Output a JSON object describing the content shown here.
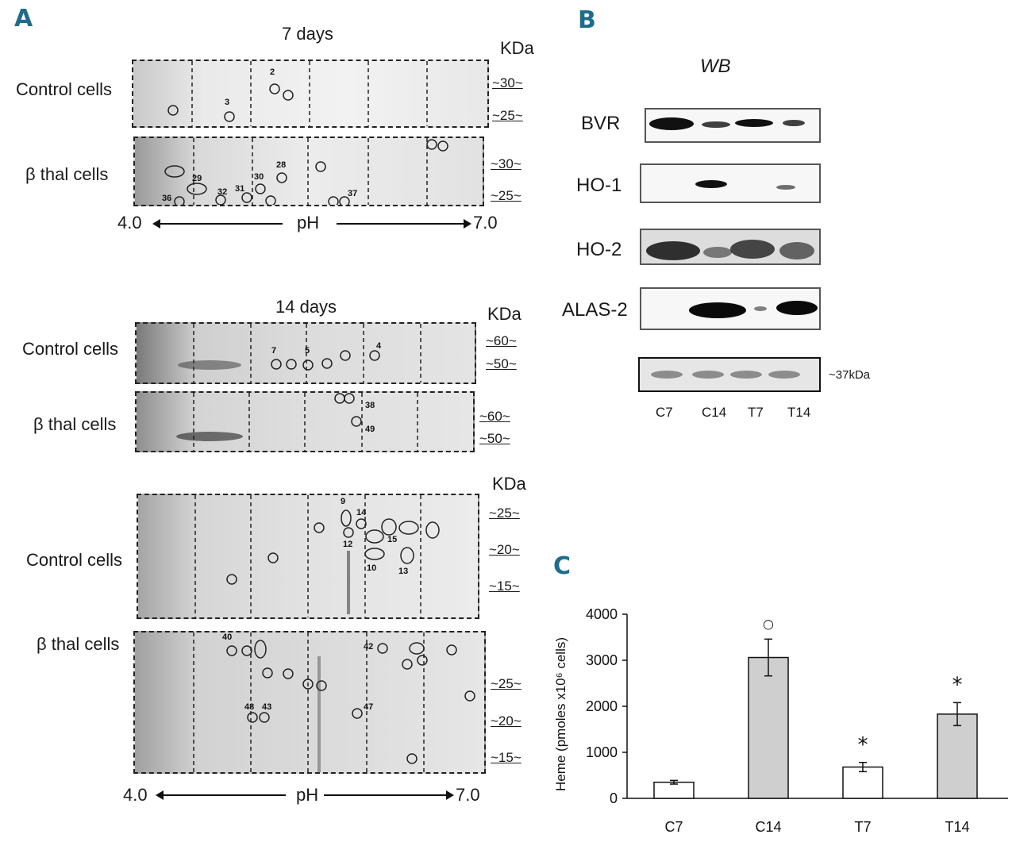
{
  "panelA": {
    "label": "A",
    "ph_start": "4.0",
    "ph_label": "pH",
    "ph_end": "7.0",
    "kda": "KDa",
    "control": "Control cells",
    "thal": "β thal cells",
    "day7": {
      "title": "7 days",
      "control_marks": [
        "~30~",
        "~25~"
      ],
      "thal_marks": [
        "~30~",
        "~25~"
      ],
      "control_spots": [
        "2",
        "3"
      ],
      "thal_spots": [
        "29",
        "30",
        "28",
        "31",
        "32",
        "36",
        "37"
      ]
    },
    "day14": {
      "title": "14 days",
      "control_marks": [
        "~60~",
        "~50~"
      ],
      "thal_marks": [
        "~60~",
        "~50~"
      ],
      "control_spots": [
        "7",
        "5",
        "4"
      ],
      "thal_spots": [
        "38",
        "49"
      ]
    },
    "gel3": {
      "control_marks": [
        "~25~",
        "~20~",
        "~15~"
      ],
      "thal_marks": [
        "~25~",
        "~20~",
        "~15~"
      ],
      "control_spots": [
        "9",
        "14",
        "12",
        "15",
        "10",
        "13"
      ],
      "thal_spots": [
        "40",
        "42",
        "48",
        "43",
        "47"
      ]
    }
  },
  "panelB": {
    "label": "B",
    "title": "WB",
    "rows": [
      "BVR",
      "HO-1",
      "HO-2",
      "ALAS-2"
    ],
    "loading_label": "~37kDa",
    "lanes": [
      "C7",
      "C14",
      "T7",
      "T14"
    ]
  },
  "panelC": {
    "label": "C",
    "chart_data": {
      "type": "bar",
      "categories": [
        "C7",
        "C14",
        "T7",
        "T14"
      ],
      "values": [
        350,
        3060,
        680,
        1830
      ],
      "errors": [
        40,
        400,
        100,
        250
      ],
      "markers": [
        "",
        "○",
        "*",
        "*"
      ],
      "ylabel": "Heme (pmoles x10⁶ cells)",
      "yticks": [
        "0",
        "1000",
        "2000",
        "3000",
        "4000"
      ],
      "ylim": [
        0,
        4000
      ],
      "colors": [
        "#ffffff",
        "#cfcfcf",
        "#ffffff",
        "#cfcfcf"
      ]
    }
  }
}
